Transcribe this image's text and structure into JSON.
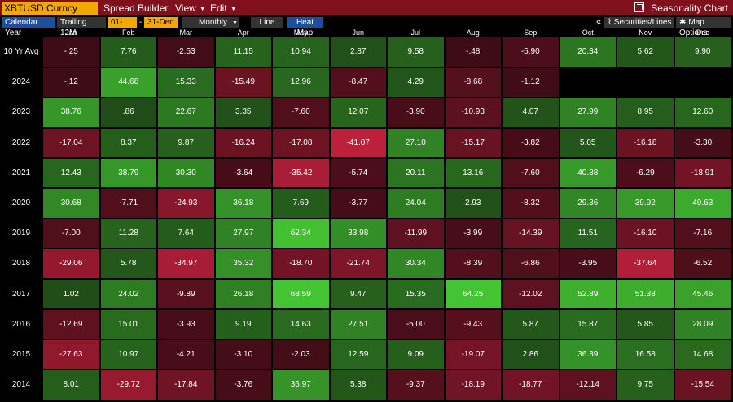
{
  "titlebar": {
    "ticker": "XBTUSD Curncy",
    "menu": [
      "Spread Builder",
      "View",
      "Edit"
    ],
    "title": "Seasonality Chart"
  },
  "toolbar": {
    "calendar_year": "Calendar Year",
    "trailing": "Trailing 12M",
    "start_date": "01-Jan",
    "dash": "-",
    "end_date": "31-Dec",
    "frequency": "Monthly",
    "line": "Line",
    "heat_map": "Heat Map",
    "collapse": "«",
    "securities": "Securities/Lines",
    "map_options": "Map Options"
  },
  "months": [
    "Jan",
    "Feb",
    "Mar",
    "Apr",
    "May",
    "Jun",
    "Jul",
    "Aug",
    "Sep",
    "Oct",
    "Nov",
    "Dec"
  ],
  "rows": [
    {
      "label": "10 Yr Avg",
      "values": [
        "-.25",
        "7.76",
        "-2.53",
        "11.15",
        "10.94",
        "2.87",
        "9.58",
        "-.48",
        "-5.90",
        "20.34",
        "5.62",
        "9.90"
      ]
    },
    {
      "label": "2024",
      "values": [
        "-.12",
        "44.68",
        "15.33",
        "-15.49",
        "12.96",
        "-8.47",
        "4.29",
        "-8.68",
        "-1.12",
        "",
        "",
        ""
      ]
    },
    {
      "label": "2023",
      "values": [
        "38.76",
        ".86",
        "22.67",
        "3.35",
        "-7.60",
        "12.07",
        "-3.90",
        "-10.93",
        "4.07",
        "27.99",
        "8.95",
        "12.60"
      ]
    },
    {
      "label": "2022",
      "values": [
        "-17.04",
        "8.37",
        "9.87",
        "-16.24",
        "-17.08",
        "-41.07",
        "27.10",
        "-15.17",
        "-3.82",
        "5.05",
        "-16.18",
        "-3.30"
      ]
    },
    {
      "label": "2021",
      "values": [
        "12.43",
        "38.79",
        "30.30",
        "-3.64",
        "-35.42",
        "-5.74",
        "20.11",
        "13.16",
        "-7.60",
        "40.38",
        "-6.29",
        "-18.91"
      ]
    },
    {
      "label": "2020",
      "values": [
        "30.68",
        "-7.71",
        "-24.93",
        "36.18",
        "7.69",
        "-3.77",
        "24.04",
        "2.93",
        "-8.32",
        "29.36",
        "39.92",
        "49.63"
      ]
    },
    {
      "label": "2019",
      "values": [
        "-7.00",
        "11.28",
        "7.64",
        "27.97",
        "62.34",
        "33.98",
        "-11.99",
        "-3.99",
        "-14.39",
        "11.51",
        "-16.10",
        "-7.16"
      ]
    },
    {
      "label": "2018",
      "values": [
        "-29.06",
        "5.78",
        "-34.97",
        "35.32",
        "-18.70",
        "-21.74",
        "30.34",
        "-8.39",
        "-6.86",
        "-3.95",
        "-37.64",
        "-6.52"
      ]
    },
    {
      "label": "2017",
      "values": [
        "1.02",
        "24.02",
        "-9.89",
        "26.18",
        "68.59",
        "9.47",
        "15.35",
        "64.25",
        "-12.02",
        "52.89",
        "51.38",
        "45.46"
      ]
    },
    {
      "label": "2016",
      "values": [
        "-12.69",
        "15.01",
        "-3.93",
        "9.19",
        "14.63",
        "27.51",
        "-5.00",
        "-9.43",
        "5.87",
        "15.87",
        "5.85",
        "28.09"
      ]
    },
    {
      "label": "2015",
      "values": [
        "-27.63",
        "10.97",
        "-4.21",
        "-3.10",
        "-2.03",
        "12.59",
        "9.09",
        "-19.07",
        "2.86",
        "36.39",
        "16.58",
        "14.68"
      ]
    },
    {
      "label": "2014",
      "values": [
        "8.01",
        "-29.72",
        "-17.84",
        "-3.76",
        "36.97",
        "5.38",
        "-9.37",
        "-18.19",
        "-18.77",
        "-12.14",
        "9.75",
        "-15.54"
      ]
    }
  ],
  "colors": {
    "titlebar": "#80101c",
    "ticker_bg": "#f3a800",
    "toolbar_blue": "#1c4f9c",
    "positive_dark": "#1f4a17",
    "positive_bright": "#44c433",
    "negative_dark": "#3d0c16",
    "negative_bright": "#c0203c"
  }
}
